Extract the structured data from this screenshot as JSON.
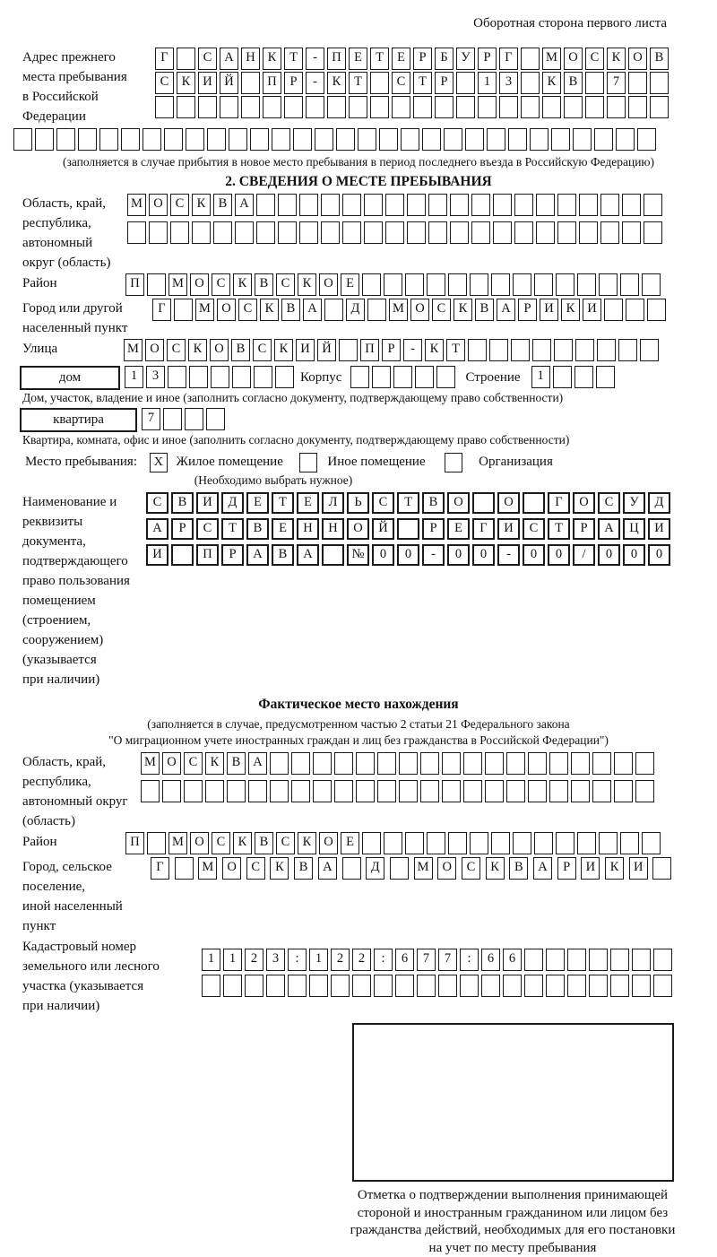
{
  "header": {
    "note": "Оборотная сторона первого листа"
  },
  "prev_address": {
    "label_lines": [
      "Адрес прежнего",
      "места пребывания",
      "в Российской",
      "Федерации"
    ],
    "rows": [
      "Г САНКТ-ПЕТЕРБУРГ МОСКОВ",
      "СКИЙ ПР-КТ СТР 13 КВ 7",
      "",
      ""
    ],
    "note": "(заполняется в случае прибытия в новое место пребывания в период последнего въезда в Российскую Федерацию)"
  },
  "section2": {
    "title": "2. СВЕДЕНИЯ О МЕСТЕ ПРЕБЫВАНИЯ",
    "oblast": {
      "label_lines": [
        "Область, край,",
        "республика,",
        "автономный",
        "округ (область)"
      ],
      "rows": [
        "МОСКВА",
        ""
      ]
    },
    "raion": {
      "label": "Район",
      "value": "П МОСКВСКОЕ"
    },
    "gorod": {
      "label_lines": [
        "Город или другой",
        "населенный пункт"
      ],
      "value": "Г МОСКВА Д МОСКВАРИКИ"
    },
    "ulitsa": {
      "label": "Улица",
      "value": "МОСКОВСКИЙ ПР-КТ"
    },
    "dom": {
      "label": "дом",
      "value": "13"
    },
    "korpus": {
      "label": "Корпус",
      "value": ""
    },
    "stroenie": {
      "label": "Строение",
      "value": "1"
    },
    "dom_note": "Дом, участок, владение и иное (заполнить согласно документу, подтверждающему право собственности)",
    "kvartira": {
      "label": "квартира",
      "value": "7"
    },
    "kvartira_note": "Квартира, комната, офис и иное (заполнить согласно документу, подтверждающему право собственности)",
    "mesto": {
      "label": "Место пребывания:",
      "options": [
        {
          "label": "Жилое помещение",
          "mark": "X"
        },
        {
          "label": "Иное помещение",
          "mark": ""
        },
        {
          "label": "Организация",
          "mark": ""
        }
      ],
      "note": "(Необходимо выбрать нужное)"
    },
    "document": {
      "label_lines": [
        "Наименование и реквизиты",
        "документа, подтверждающего",
        "право пользования",
        "помещением (строением,",
        "сооружением) (указывается",
        "при наличии)"
      ],
      "rows": [
        "СВИДЕТЕЛЬСТВО О ГОСУД",
        "АРСТВЕННОЙ РЕГИСТРАЦИ",
        "И ПРАВА №00-00-00/000"
      ]
    }
  },
  "fact": {
    "title": "Фактическое место нахождения",
    "note_lines": [
      "(заполняется в случае, предусмотренном частью 2 статьи 21 Федерального закона",
      "\"О миграционном учете иностранных граждан и лиц без гражданства в Российской Федерации\")"
    ],
    "oblast": {
      "label_lines": [
        "Область, край,",
        "республика,",
        "автономный округ",
        "(область)"
      ],
      "rows": [
        "МОСКВА",
        ""
      ]
    },
    "raion": {
      "label": "Район",
      "value": "П МОСКВСКОЕ"
    },
    "gorod": {
      "label_lines": [
        "Город, сельское поселение,",
        "иной населенный пункт"
      ],
      "value": "Г МОСКВА Д МОСКВАРИКИ"
    },
    "kadastr": {
      "label_lines": [
        "Кадастровый номер",
        "земельного или лесного",
        "участка (указывается",
        "при наличии)"
      ],
      "rows": [
        "1123:122:677:66",
        ""
      ]
    }
  },
  "stamp": {
    "caption_lines": [
      "Отметка о подтверждении выполнения принимающей",
      "стороной и иностранным гражданином или лицом без",
      "гражданства действий, необходимых для его постановки",
      "на учет по месту пребывания"
    ]
  }
}
